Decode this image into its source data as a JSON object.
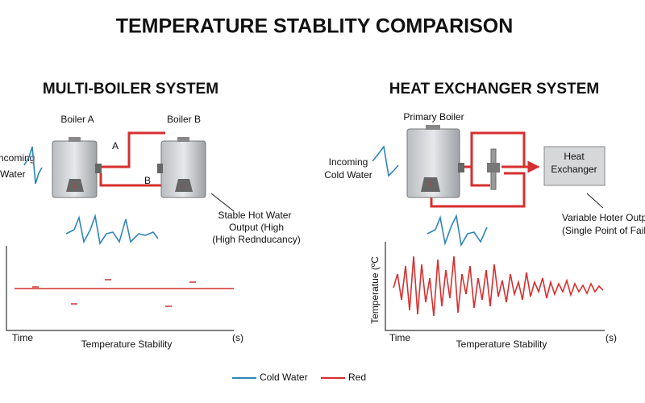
{
  "title": "TEMPERATURE STABLITY COMPARISON",
  "left": {
    "heading": "MULTI-BOILER SYSTEM",
    "boiler_a": "Boiler A",
    "boiler_b": "Boiler B",
    "pipe_a": "A",
    "pipe_b": "B",
    "input_1": "ncoming",
    "input_2": "Water",
    "output_1": "Stable Hot Water",
    "output_2": "Output (High",
    "output_3": "(High Rednducancy)",
    "chart": {
      "x_label": "Time",
      "caption": "Temperature Stability",
      "unit": "(s)"
    }
  },
  "right": {
    "heading": "HEAT EXCHANGER SYSTEM",
    "boiler": "Primary Boiler",
    "input_1": "Incoming",
    "input_2": "Cold Water",
    "exchanger_1": "Heat",
    "exchanger_2": "Exchanger",
    "output_1": "Variable Hoter Outp",
    "output_2": "(Single Point of Failu",
    "chart": {
      "y_label": "Temperatue (ºC",
      "x_label": "Time",
      "caption": "Temperature Stability",
      "unit": "(s)"
    }
  },
  "legend": {
    "cold": "Cold Water",
    "hot": "Red"
  }
}
